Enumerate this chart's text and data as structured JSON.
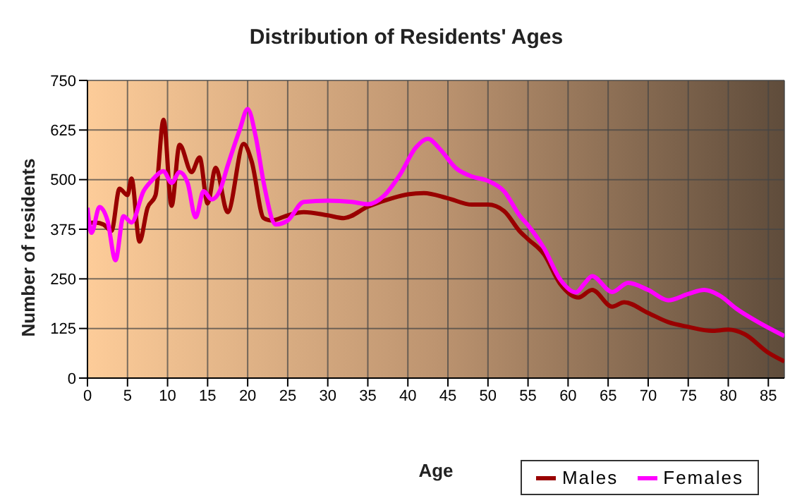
{
  "chart_data": {
    "type": "line",
    "title": "Distribution of Residents' Ages",
    "xlabel": "Age",
    "ylabel": "Number of residents",
    "xlim": [
      0,
      87
    ],
    "xticks": [
      0,
      5,
      10,
      15,
      20,
      25,
      30,
      35,
      40,
      45,
      50,
      55,
      60,
      65,
      70,
      75,
      80,
      85
    ],
    "ylim": [
      0,
      750
    ],
    "yticks": [
      0,
      125,
      250,
      375,
      500,
      625,
      750
    ],
    "grid": true,
    "legend": "bottom right",
    "marker": "none",
    "line_style": "solid",
    "series": [
      {
        "name": "Males",
        "color": "#990000",
        "x": [
          0,
          1,
          2,
          3,
          4,
          5,
          5.5,
          6.5,
          7.5,
          8.5,
          9.5,
          10.5,
          11.5,
          13,
          14,
          15,
          16,
          17.5,
          19.5,
          20.5,
          22,
          23,
          25,
          27,
          30,
          32,
          35,
          38,
          40,
          42,
          45,
          48,
          50,
          52,
          54,
          55,
          57,
          59,
          61.3,
          63,
          65.5,
          67,
          70,
          72.5,
          75,
          78,
          80,
          82,
          85,
          87
        ],
        "values": [
          390,
          392,
          387,
          371,
          477,
          461,
          503,
          344,
          429,
          461,
          651,
          434,
          588,
          519,
          556,
          440,
          530,
          418,
          590,
          546,
          403,
          397,
          410,
          418,
          410,
          403,
          432,
          453,
          463,
          466,
          453,
          437,
          437,
          421,
          369,
          350,
          312,
          238,
          203,
          222,
          180,
          191,
          164,
          141,
          129,
          119,
          122,
          111,
          64,
          42
        ]
      },
      {
        "name": "Females",
        "color": "#ff00ff",
        "x": [
          0,
          0.5,
          1.5,
          2.5,
          3.5,
          4.5,
          5.5,
          7,
          8,
          9.5,
          10.5,
          11.5,
          12.5,
          13.5,
          14.5,
          15.5,
          16.5,
          17.5,
          19,
          20,
          21,
          22,
          23.5,
          25,
          27,
          30,
          33,
          35,
          37,
          39,
          41,
          42.5,
          44,
          46,
          48,
          50,
          52,
          54,
          55,
          57,
          59,
          61,
          62,
          63,
          65.5,
          67.5,
          70,
          72.5,
          75,
          77,
          79,
          81,
          84,
          87
        ],
        "values": [
          429,
          366,
          431,
          397,
          297,
          408,
          392,
          471,
          497,
          521,
          492,
          519,
          492,
          405,
          471,
          450,
          471,
          535,
          625,
          678,
          609,
          492,
          387,
          397,
          444,
          447,
          444,
          438,
          459,
          512,
          581,
          603,
          577,
          529,
          508,
          497,
          471,
          408,
          385,
          327,
          249,
          216,
          237,
          257,
          217,
          240,
          222,
          196,
          212,
          222,
          207,
          175,
          138,
          106
        ]
      }
    ]
  }
}
